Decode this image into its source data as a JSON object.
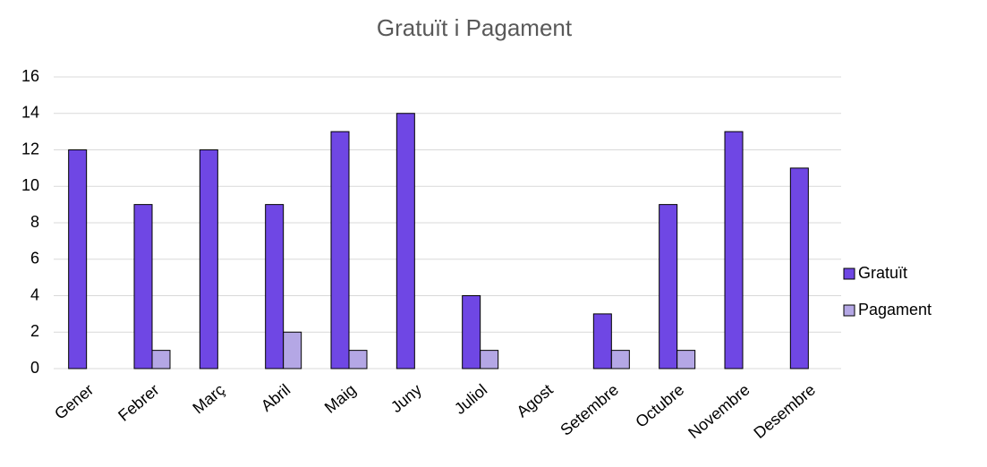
{
  "chart_data": {
    "type": "bar",
    "title": "Gratuït i Pagament",
    "categories": [
      "Gener",
      "Febrer",
      "Març",
      "Abril",
      "Maig",
      "Juny",
      "Juliol",
      "Agost",
      "Setembre",
      "Octubre",
      "Novembre",
      "Desembre"
    ],
    "series": [
      {
        "name": "Gratuït",
        "color": "#6f47e4",
        "values": [
          12,
          9,
          12,
          9,
          13,
          14,
          4,
          0,
          3,
          9,
          13,
          11
        ]
      },
      {
        "name": "Pagament",
        "color": "#b4a7e5",
        "values": [
          0,
          1,
          0,
          2,
          1,
          0,
          1,
          0,
          1,
          1,
          0,
          0
        ]
      }
    ],
    "ylim": [
      0,
      16
    ],
    "yticks": [
      0,
      2,
      4,
      6,
      8,
      10,
      12,
      14,
      16
    ],
    "grid": true,
    "legend": "right"
  }
}
